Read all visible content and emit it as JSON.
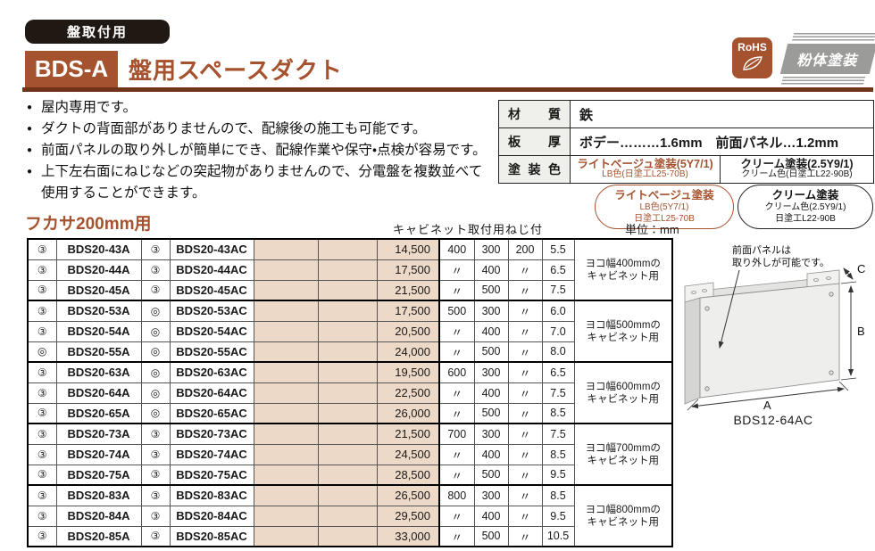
{
  "colors": {
    "accent": "#A5522E",
    "rule": "#703518",
    "tan": "#ECD9C7",
    "badge_black": "#201812",
    "powder_gray": "#9B9B99"
  },
  "header": {
    "tag": "盤取付用",
    "code": "BDS-A",
    "title": "盤用スペースダクト",
    "rohs_label": "RoHS",
    "powder_label": "粉体塗装"
  },
  "features": {
    "items": [
      {
        "text": "屋内専用です。",
        "cont": false
      },
      {
        "text": "ダクトの背面部がありませんので、配線後の施工も可能です。",
        "cont": false
      },
      {
        "text": "前面パネルの取り外しが簡単にでき、配線作業や保守・点検が容易です。",
        "cont": false
      },
      {
        "text": "上下左右面にねじなどの突起物がありませんので、分電盤を複数並べて",
        "cont": false
      },
      {
        "text": "使用することができます。",
        "cont": true
      }
    ]
  },
  "spec_table": {
    "material_label": "材 質",
    "material_value": "鉄",
    "thickness_label": "板 厚",
    "thickness_value": "ボデー………1.6mm　前面パネル…1.2mm",
    "paint_label": "塗 装 色",
    "paint_lb_line1": "ライトベージュ塗装(5Y7/1)",
    "paint_lb_line2": "LB色(日塗工L25-70B)",
    "paint_cream_line1": "クリーム塗装(2.5Y9/1)",
    "paint_cream_line2": "クリーム色(日塗工L22-90B)"
  },
  "pills": {
    "lb": {
      "line1": "ライトベージュ塗装",
      "line2": "LB色(5Y7/1)",
      "line3": "日塗工L25-70B"
    },
    "cream": {
      "line1": "クリーム塗装",
      "line2": "クリーム色(2.5Y9/1)",
      "line3": "日塗工L22-90B"
    }
  },
  "section": {
    "heading": "フカサ200mm用",
    "screws_note": "キャビネット取付用ねじ付",
    "unit": "単位：mm"
  },
  "table": {
    "rows": [
      {
        "m1": "③",
        "model": "BDS20-43A",
        "m2": "③",
        "model_c": "BDS20-43AC",
        "price": "14,500",
        "a": "400",
        "b": "300",
        "c": "200",
        "w": "5.5",
        "note": "ヨコ幅400mmの\nキャビネット用",
        "group_start": false
      },
      {
        "m1": "③",
        "model": "BDS20-44A",
        "m2": "③",
        "model_c": "BDS20-44AC",
        "price": "17,500",
        "a": "〃",
        "b": "400",
        "c": "〃",
        "w": "6.5",
        "group_start": false
      },
      {
        "m1": "③",
        "model": "BDS20-45A",
        "m2": "③",
        "model_c": "BDS20-45AC",
        "price": "21,500",
        "a": "〃",
        "b": "500",
        "c": "〃",
        "w": "7.5",
        "group_start": false
      },
      {
        "m1": "③",
        "model": "BDS20-53A",
        "m2": "◎",
        "model_c": "BDS20-53AC",
        "price": "17,500",
        "a": "500",
        "b": "300",
        "c": "〃",
        "w": "6.0",
        "note": "ヨコ幅500mmの\nキャビネット用",
        "group_start": true
      },
      {
        "m1": "③",
        "model": "BDS20-54A",
        "m2": "◎",
        "model_c": "BDS20-54AC",
        "price": "20,500",
        "a": "〃",
        "b": "400",
        "c": "〃",
        "w": "7.0",
        "group_start": false
      },
      {
        "m1": "◎",
        "model": "BDS20-55A",
        "m2": "◎",
        "model_c": "BDS20-55AC",
        "price": "24,000",
        "a": "〃",
        "b": "500",
        "c": "〃",
        "w": "8.0",
        "group_start": false
      },
      {
        "m1": "③",
        "model": "BDS20-63A",
        "m2": "◎",
        "model_c": "BDS20-63AC",
        "price": "19,500",
        "a": "600",
        "b": "300",
        "c": "〃",
        "w": "6.5",
        "note": "ヨコ幅600mmの\nキャビネット用",
        "group_start": true
      },
      {
        "m1": "③",
        "model": "BDS20-64A",
        "m2": "◎",
        "model_c": "BDS20-64AC",
        "price": "22,500",
        "a": "〃",
        "b": "400",
        "c": "〃",
        "w": "7.5",
        "group_start": false
      },
      {
        "m1": "③",
        "model": "BDS20-65A",
        "m2": "◎",
        "model_c": "BDS20-65AC",
        "price": "26,000",
        "a": "〃",
        "b": "500",
        "c": "〃",
        "w": "8.5",
        "group_start": false
      },
      {
        "m1": "③",
        "model": "BDS20-73A",
        "m2": "③",
        "model_c": "BDS20-73AC",
        "price": "21,500",
        "a": "700",
        "b": "300",
        "c": "〃",
        "w": "7.5",
        "note": "ヨコ幅700mmの\nキャビネット用",
        "group_start": true
      },
      {
        "m1": "③",
        "model": "BDS20-74A",
        "m2": "③",
        "model_c": "BDS20-74AC",
        "price": "24,500",
        "a": "〃",
        "b": "400",
        "c": "〃",
        "w": "8.5",
        "group_start": false
      },
      {
        "m1": "③",
        "model": "BDS20-75A",
        "m2": "③",
        "model_c": "BDS20-75AC",
        "price": "28,500",
        "a": "〃",
        "b": "500",
        "c": "〃",
        "w": "9.5",
        "group_start": false
      },
      {
        "m1": "③",
        "model": "BDS20-83A",
        "m2": "③",
        "model_c": "BDS20-83AC",
        "price": "26,500",
        "a": "800",
        "b": "300",
        "c": "〃",
        "w": "8.5",
        "note": "ヨコ幅800mmの\nキャビネット用",
        "group_start": true
      },
      {
        "m1": "③",
        "model": "BDS20-84A",
        "m2": "③",
        "model_c": "BDS20-84AC",
        "price": "29,500",
        "a": "〃",
        "b": "400",
        "c": "〃",
        "w": "9.5",
        "group_start": false
      },
      {
        "m1": "③",
        "model": "BDS20-85A",
        "m2": "③",
        "model_c": "BDS20-85AC",
        "price": "33,000",
        "a": "〃",
        "b": "500",
        "c": "〃",
        "w": "10.5",
        "group_start": false
      }
    ]
  },
  "diagram": {
    "annotation_line1": "前面パネルは",
    "annotation_line2": "取り外しが可能です。",
    "dim_a": "A",
    "dim_b": "B",
    "dim_c": "C",
    "caption": "BDS12-64AC"
  }
}
